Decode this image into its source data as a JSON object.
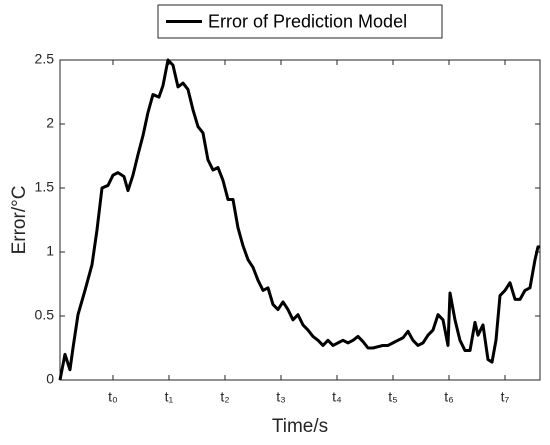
{
  "chart_data": {
    "type": "line",
    "legend": "top",
    "xlabel": "Time/s",
    "ylabel": "Error/°C",
    "xlim": [
      -0.946,
      7.625
    ],
    "ylim": [
      0,
      2.5
    ],
    "xticks": [
      {
        "value": 0,
        "label": "t₀"
      },
      {
        "value": 1,
        "label": "t₁"
      },
      {
        "value": 2,
        "label": "t₂"
      },
      {
        "value": 3,
        "label": "t₃"
      },
      {
        "value": 4,
        "label": "t₄"
      },
      {
        "value": 5,
        "label": "t₅"
      },
      {
        "value": 6,
        "label": "t₆"
      },
      {
        "value": 7,
        "label": "t₇"
      }
    ],
    "yticks": [
      0,
      0.5,
      1,
      1.5,
      2,
      2.5
    ],
    "x": [
      -0.946,
      -0.857,
      -0.768,
      -0.714,
      -0.625,
      -0.5,
      -0.375,
      -0.286,
      -0.196,
      -0.089,
      0,
      0.089,
      0.196,
      0.268,
      0.357,
      0.446,
      0.536,
      0.625,
      0.714,
      0.821,
      0.893,
      0.982,
      1.071,
      1.161,
      1.25,
      1.339,
      1.429,
      1.518,
      1.607,
      1.696,
      1.786,
      1.875,
      1.964,
      2.054,
      2.143,
      2.232,
      2.321,
      2.411,
      2.5,
      2.589,
      2.679,
      2.768,
      2.857,
      2.946,
      3.036,
      3.125,
      3.214,
      3.304,
      3.393,
      3.482,
      3.571,
      3.661,
      3.75,
      3.839,
      3.929,
      4.018,
      4.107,
      4.196,
      4.286,
      4.375,
      4.464,
      4.554,
      4.643,
      4.732,
      4.821,
      4.911,
      5.0,
      5.089,
      5.179,
      5.268,
      5.357,
      5.446,
      5.536,
      5.625,
      5.714,
      5.804,
      5.893,
      5.982,
      6.018,
      6.107,
      6.196,
      6.286,
      6.375,
      6.464,
      6.518,
      6.607,
      6.696,
      6.768,
      6.839,
      6.911,
      7.0,
      7.089,
      7.179,
      7.268,
      7.357,
      7.446,
      7.536,
      7.589,
      7.625
    ],
    "series": [
      {
        "name": "Error of Prediction Model",
        "color": "#000000",
        "values": [
          0,
          0.2,
          0.08,
          0.25,
          0.51,
          0.7,
          0.9,
          1.17,
          1.5,
          1.52,
          1.6,
          1.62,
          1.59,
          1.48,
          1.6,
          1.76,
          1.91,
          2.09,
          2.23,
          2.21,
          2.3,
          2.5,
          2.46,
          2.29,
          2.32,
          2.27,
          2.11,
          1.98,
          1.93,
          1.72,
          1.64,
          1.66,
          1.56,
          1.41,
          1.41,
          1.19,
          1.05,
          0.94,
          0.88,
          0.78,
          0.7,
          0.72,
          0.59,
          0.55,
          0.61,
          0.55,
          0.47,
          0.51,
          0.43,
          0.39,
          0.34,
          0.31,
          0.27,
          0.31,
          0.27,
          0.29,
          0.31,
          0.29,
          0.31,
          0.34,
          0.3,
          0.25,
          0.25,
          0.26,
          0.27,
          0.27,
          0.29,
          0.31,
          0.33,
          0.38,
          0.31,
          0.27,
          0.29,
          0.35,
          0.39,
          0.51,
          0.47,
          0.27,
          0.68,
          0.47,
          0.31,
          0.23,
          0.23,
          0.45,
          0.35,
          0.43,
          0.16,
          0.14,
          0.31,
          0.66,
          0.7,
          0.76,
          0.63,
          0.63,
          0.7,
          0.72,
          0.94,
          1.04,
          1.04
        ]
      }
    ]
  }
}
